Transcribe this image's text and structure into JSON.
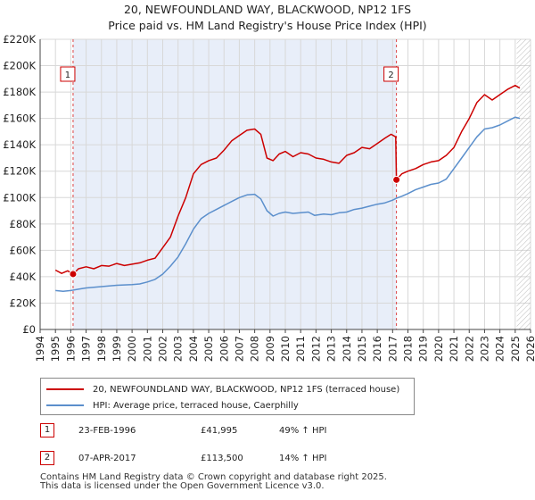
{
  "chart_data": {
    "type": "line",
    "title": "20, NEWFOUNDLAND WAY, BLACKWOOD, NP12 1FS",
    "subtitle": "Price paid vs. HM Land Registry's House Price Index (HPI)",
    "xlim": [
      1994,
      2026
    ],
    "ylim": [
      0,
      220000
    ],
    "x_ticks": [
      1994,
      1995,
      1996,
      1997,
      1998,
      1999,
      2000,
      2001,
      2002,
      2003,
      2004,
      2005,
      2006,
      2007,
      2008,
      2009,
      2010,
      2011,
      2012,
      2013,
      2014,
      2015,
      2016,
      2017,
      2018,
      2019,
      2020,
      2021,
      2022,
      2023,
      2024,
      2025,
      2026
    ],
    "y_ticks": [
      {
        "value": 0,
        "label": "£0"
      },
      {
        "value": 20000,
        "label": "£20K"
      },
      {
        "value": 40000,
        "label": "£40K"
      },
      {
        "value": 60000,
        "label": "£60K"
      },
      {
        "value": 80000,
        "label": "£80K"
      },
      {
        "value": 100000,
        "label": "£100K"
      },
      {
        "value": 120000,
        "label": "£120K"
      },
      {
        "value": 140000,
        "label": "£140K"
      },
      {
        "value": 160000,
        "label": "£160K"
      },
      {
        "value": 180000,
        "label": "£180K"
      },
      {
        "value": 200000,
        "label": "£200K"
      },
      {
        "value": 220000,
        "label": "£220K"
      }
    ],
    "series": [
      {
        "name": "20, NEWFOUNDLAND WAY, BLACKWOOD, NP12 1FS (terraced house)",
        "color": "#cc0000",
        "points": [
          [
            1995.0,
            45000
          ],
          [
            1995.4,
            42500
          ],
          [
            1995.8,
            44500
          ],
          [
            1996.15,
            41995
          ],
          [
            1996.5,
            46000
          ],
          [
            1997.0,
            47500
          ],
          [
            1997.5,
            46000
          ],
          [
            1998.0,
            48500
          ],
          [
            1998.5,
            48000
          ],
          [
            1999.0,
            50000
          ],
          [
            1999.5,
            48500
          ],
          [
            2000.0,
            49500
          ],
          [
            2000.5,
            50500
          ],
          [
            2001.0,
            52500
          ],
          [
            2001.5,
            54000
          ],
          [
            2002.0,
            62000
          ],
          [
            2002.5,
            70000
          ],
          [
            2003.0,
            86000
          ],
          [
            2003.5,
            100000
          ],
          [
            2004.0,
            118000
          ],
          [
            2004.5,
            125000
          ],
          [
            2005.0,
            128000
          ],
          [
            2005.5,
            130000
          ],
          [
            2006.0,
            136000
          ],
          [
            2006.5,
            143000
          ],
          [
            2007.0,
            147000
          ],
          [
            2007.5,
            151000
          ],
          [
            2008.0,
            152000
          ],
          [
            2008.4,
            148000
          ],
          [
            2008.8,
            130000
          ],
          [
            2009.2,
            128000
          ],
          [
            2009.6,
            133000
          ],
          [
            2010.0,
            135000
          ],
          [
            2010.5,
            131000
          ],
          [
            2011.0,
            134000
          ],
          [
            2011.5,
            133000
          ],
          [
            2012.0,
            130000
          ],
          [
            2012.5,
            129000
          ],
          [
            2013.0,
            127000
          ],
          [
            2013.5,
            126000
          ],
          [
            2014.0,
            132000
          ],
          [
            2014.5,
            134000
          ],
          [
            2015.0,
            138000
          ],
          [
            2015.5,
            137000
          ],
          [
            2016.0,
            141000
          ],
          [
            2016.5,
            145000
          ],
          [
            2016.9,
            148000
          ],
          [
            2017.2,
            146000
          ],
          [
            2017.25,
            113500
          ],
          [
            2017.6,
            118000
          ],
          [
            2018.0,
            120000
          ],
          [
            2018.5,
            122000
          ],
          [
            2019.0,
            125000
          ],
          [
            2019.5,
            127000
          ],
          [
            2020.0,
            128000
          ],
          [
            2020.5,
            132000
          ],
          [
            2021.0,
            138000
          ],
          [
            2021.5,
            150000
          ],
          [
            2022.0,
            160000
          ],
          [
            2022.5,
            172000
          ],
          [
            2023.0,
            178000
          ],
          [
            2023.5,
            174000
          ],
          [
            2024.0,
            178000
          ],
          [
            2024.5,
            182000
          ],
          [
            2025.0,
            185000
          ],
          [
            2025.3,
            183000
          ]
        ]
      },
      {
        "name": "HPI: Average price, terraced house, Caerphilly",
        "color": "#5b8fcc",
        "points": [
          [
            1995.0,
            29500
          ],
          [
            1995.5,
            29000
          ],
          [
            1996.0,
            29500
          ],
          [
            1996.5,
            30500
          ],
          [
            1997.0,
            31500
          ],
          [
            1997.5,
            32000
          ],
          [
            1998.0,
            32500
          ],
          [
            1998.5,
            33000
          ],
          [
            1999.0,
            33500
          ],
          [
            1999.5,
            33800
          ],
          [
            2000.0,
            34000
          ],
          [
            2000.5,
            34500
          ],
          [
            2001.0,
            36000
          ],
          [
            2001.5,
            38000
          ],
          [
            2002.0,
            42000
          ],
          [
            2002.5,
            48000
          ],
          [
            2003.0,
            55000
          ],
          [
            2003.5,
            65000
          ],
          [
            2004.0,
            76000
          ],
          [
            2004.5,
            84000
          ],
          [
            2005.0,
            88000
          ],
          [
            2005.5,
            91000
          ],
          [
            2006.0,
            94000
          ],
          [
            2006.5,
            97000
          ],
          [
            2007.0,
            100000
          ],
          [
            2007.5,
            102000
          ],
          [
            2008.0,
            102500
          ],
          [
            2008.4,
            99000
          ],
          [
            2008.8,
            90000
          ],
          [
            2009.2,
            86000
          ],
          [
            2009.6,
            88000
          ],
          [
            2010.0,
            89000
          ],
          [
            2010.5,
            88000
          ],
          [
            2011.0,
            88500
          ],
          [
            2011.5,
            89000
          ],
          [
            2011.9,
            86500
          ],
          [
            2012.5,
            87500
          ],
          [
            2013.0,
            87000
          ],
          [
            2013.5,
            88500
          ],
          [
            2014.0,
            89000
          ],
          [
            2014.5,
            91000
          ],
          [
            2015.0,
            92000
          ],
          [
            2015.5,
            93500
          ],
          [
            2016.0,
            95000
          ],
          [
            2016.5,
            96000
          ],
          [
            2017.0,
            98000
          ],
          [
            2017.25,
            99500
          ],
          [
            2017.6,
            101000
          ],
          [
            2018.0,
            103000
          ],
          [
            2018.5,
            106000
          ],
          [
            2019.0,
            108000
          ],
          [
            2019.5,
            110000
          ],
          [
            2020.0,
            111000
          ],
          [
            2020.5,
            114000
          ],
          [
            2021.0,
            122000
          ],
          [
            2021.5,
            130000
          ],
          [
            2022.0,
            138000
          ],
          [
            2022.5,
            146000
          ],
          [
            2023.0,
            152000
          ],
          [
            2023.5,
            153000
          ],
          [
            2024.0,
            155000
          ],
          [
            2024.5,
            158000
          ],
          [
            2025.0,
            161000
          ],
          [
            2025.3,
            160000
          ]
        ]
      }
    ],
    "sales": [
      {
        "marker": "1",
        "year": 1996.15,
        "price": 41995
      },
      {
        "marker": "2",
        "year": 2017.25,
        "price": 113500
      }
    ],
    "shaded_range": [
      1996.15,
      2017.25
    ]
  },
  "legend": {
    "property_label": "20, NEWFOUNDLAND WAY, BLACKWOOD, NP12 1FS (terraced house)",
    "hpi_label": "HPI: Average price, terraced house, Caerphilly"
  },
  "sales_table": [
    {
      "marker": "1",
      "date": "23-FEB-1996",
      "price": "£41,995",
      "hpi": "49% ↑ HPI"
    },
    {
      "marker": "2",
      "date": "07-APR-2017",
      "price": "£113,500",
      "hpi": "14% ↑ HPI"
    }
  ],
  "footer": {
    "line1": "Contains HM Land Registry data © Crown copyright and database right 2025.",
    "line2": "This data is licensed under the Open Government Licence v3.0."
  }
}
